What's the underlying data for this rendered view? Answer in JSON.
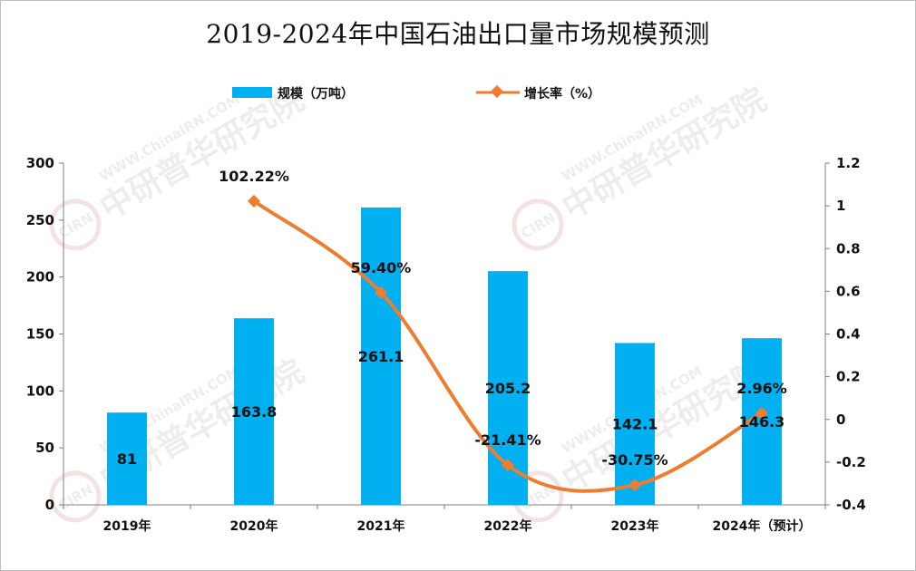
{
  "chart_data": {
    "type": "bar",
    "title": "2019-2024年中国石油出口量市场规模预测",
    "categories": [
      "2019年",
      "2020年",
      "2021年",
      "2022年",
      "2023年",
      "2024年（预计）"
    ],
    "series": [
      {
        "name": "规模（万吨）",
        "type": "bar",
        "axis": "left",
        "values": [
          81,
          163.8,
          261.1,
          205.2,
          142.1,
          146.3
        ],
        "labels": [
          "81",
          "163.8",
          "261.1",
          "205.2",
          "142.1",
          "146.3"
        ],
        "color": "#00b0f0"
      },
      {
        "name": "增长率（%）",
        "type": "line",
        "axis": "right",
        "values": [
          null,
          1.0222,
          0.594,
          -0.2141,
          -0.3075,
          0.0296
        ],
        "labels": [
          "",
          "102.22%",
          "59.40%",
          "-21.41%",
          "-30.75%",
          "2.96%"
        ],
        "color": "#ed7d31"
      }
    ],
    "y_left": {
      "min": 0,
      "max": 300,
      "ticks": [
        "0",
        "50",
        "100",
        "150",
        "200",
        "250",
        "300"
      ]
    },
    "y_right": {
      "min": -0.4,
      "max": 1.2,
      "ticks": [
        "-0.4",
        "-0.2",
        "0",
        "0.2",
        "0.4",
        "0.6",
        "0.8",
        "1",
        "1.2"
      ]
    },
    "legend": "top-center",
    "grid": false
  },
  "watermark": {
    "text": "中研普华研究院",
    "sub": "WWW.ChinaIRN.COM",
    "logo": "CIRN"
  }
}
